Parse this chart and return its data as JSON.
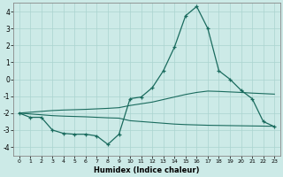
{
  "xlabel": "Humidex (Indice chaleur)",
  "background_color": "#cceae7",
  "grid_color": "#aad4d0",
  "line_color": "#1a6b5e",
  "xlim": [
    -0.5,
    23.5
  ],
  "ylim": [
    -4.5,
    4.5
  ],
  "yticks": [
    -4,
    -3,
    -2,
    -1,
    0,
    1,
    2,
    3,
    4
  ],
  "xticks": [
    0,
    1,
    2,
    3,
    4,
    5,
    6,
    7,
    8,
    9,
    10,
    11,
    12,
    13,
    14,
    15,
    16,
    17,
    18,
    19,
    20,
    21,
    22,
    23
  ],
  "main_x": [
    0,
    1,
    2,
    3,
    4,
    5,
    6,
    7,
    8,
    9,
    10,
    11,
    12,
    13,
    14,
    15,
    16,
    17,
    18,
    19,
    20,
    21,
    22,
    23
  ],
  "main_y": [
    -2.0,
    -2.25,
    -2.25,
    -3.0,
    -3.2,
    -3.25,
    -3.25,
    -3.35,
    -3.85,
    -3.25,
    -1.15,
    -1.05,
    -0.5,
    0.5,
    1.9,
    3.75,
    4.3,
    3.0,
    0.5,
    0.0,
    -0.65,
    -1.15,
    -2.5,
    -2.8
  ],
  "upper_x": [
    0,
    1,
    2,
    3,
    4,
    5,
    6,
    7,
    8,
    9,
    10,
    11,
    12,
    13,
    14,
    15,
    16,
    17,
    18,
    19,
    20,
    21,
    22,
    23
  ],
  "upper_y": [
    -2.0,
    -1.95,
    -1.9,
    -1.85,
    -1.82,
    -1.8,
    -1.78,
    -1.75,
    -1.72,
    -1.68,
    -1.55,
    -1.45,
    -1.35,
    -1.2,
    -1.05,
    -0.9,
    -0.78,
    -0.7,
    -0.72,
    -0.75,
    -0.78,
    -0.82,
    -0.85,
    -0.88
  ],
  "lower_x": [
    0,
    1,
    2,
    3,
    4,
    5,
    6,
    7,
    8,
    9,
    10,
    11,
    12,
    13,
    14,
    15,
    16,
    17,
    18,
    19,
    20,
    21,
    22,
    23
  ],
  "lower_y": [
    -2.0,
    -2.05,
    -2.1,
    -2.15,
    -2.18,
    -2.2,
    -2.22,
    -2.25,
    -2.28,
    -2.3,
    -2.45,
    -2.5,
    -2.55,
    -2.6,
    -2.65,
    -2.68,
    -2.7,
    -2.72,
    -2.73,
    -2.74,
    -2.75,
    -2.76,
    -2.77,
    -2.78
  ]
}
